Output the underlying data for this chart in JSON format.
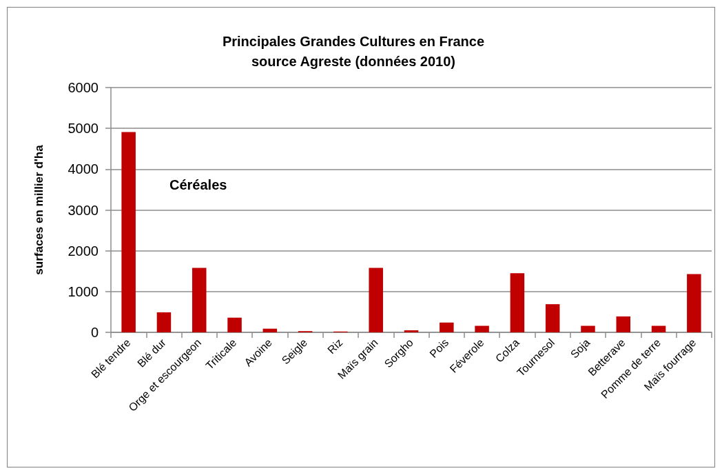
{
  "chart_data": {
    "type": "bar",
    "title": "Principales Grandes Cultures en France",
    "subtitle": "source Agreste (données 2010)",
    "ylabel": "surfaces en millier d'ha",
    "annotations": [
      "Céréales"
    ],
    "categories": [
      "Blé tendre",
      "Blé dur",
      "Orge et escourgeon",
      "Triticale",
      "Avoine",
      "Seigle",
      "Riz",
      "Maïs grain",
      "Sorgho",
      "Pois",
      "Féverole",
      "Colza",
      "Tournesol",
      "Soja",
      "Betterave",
      "Pomme de terre",
      "Maïs fourrage"
    ],
    "values": [
      4910,
      490,
      1580,
      360,
      90,
      30,
      20,
      1580,
      50,
      240,
      160,
      1450,
      690,
      160,
      390,
      160,
      1430
    ],
    "color": "#c00000",
    "ylim": [
      0,
      6000
    ],
    "yticks": [
      0,
      1000,
      2000,
      3000,
      4000,
      5000,
      6000
    ],
    "grid": "y"
  }
}
